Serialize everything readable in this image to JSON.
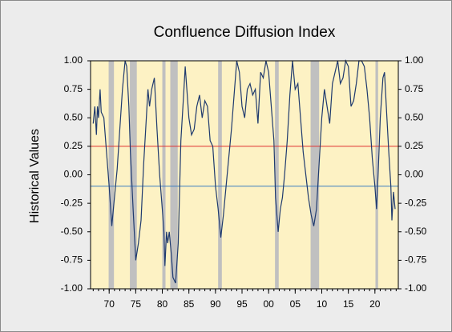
{
  "chart_data": {
    "type": "line",
    "title": "Confluence Diffusion Index",
    "y_label": "Historical Values",
    "xlim": [
      1966.5,
      2024.4
    ],
    "xticks": [
      {
        "value": 1970,
        "label": "70"
      },
      {
        "value": 1975,
        "label": "75"
      },
      {
        "value": 1980,
        "label": "80"
      },
      {
        "value": 1985,
        "label": "85"
      },
      {
        "value": 1990,
        "label": "90"
      },
      {
        "value": 1995,
        "label": "95"
      },
      {
        "value": 2000,
        "label": "00"
      },
      {
        "value": 2005,
        "label": "05"
      },
      {
        "value": 2010,
        "label": "10"
      },
      {
        "value": 2015,
        "label": "15"
      },
      {
        "value": 2020,
        "label": "20"
      }
    ],
    "ylim": [
      -1,
      1
    ],
    "yticks": [
      {
        "value": 1,
        "label": "1.00"
      },
      {
        "value": 0.75,
        "label": "0.75"
      },
      {
        "value": 0.5,
        "label": "0.50"
      },
      {
        "value": 0.25,
        "label": "0.25"
      },
      {
        "value": 0,
        "label": "0.00"
      },
      {
        "value": -0.25,
        "label": "-0.25"
      },
      {
        "value": -0.5,
        "label": "-0.50"
      },
      {
        "value": -0.75,
        "label": "-0.75"
      },
      {
        "value": -1,
        "label": "-1.00"
      }
    ],
    "y2lim": [
      -1,
      1
    ],
    "y2ticks": [
      {
        "value": 1,
        "label": "1.00"
      },
      {
        "value": 0.75,
        "label": "0.75"
      },
      {
        "value": 0.5,
        "label": "0.50"
      },
      {
        "value": 0.25,
        "label": "0.25"
      },
      {
        "value": 0,
        "label": "0.00"
      },
      {
        "value": -0.25,
        "label": "-0.25"
      },
      {
        "value": -0.5,
        "label": "-0.50"
      },
      {
        "value": -0.75,
        "label": "-0.75"
      },
      {
        "value": -1,
        "label": "-1.00"
      }
    ],
    "background": "#fdf2c4",
    "recession_color": "#c0c0c0",
    "recessions": [
      [
        1969.9,
        1970.9
      ],
      [
        1973.9,
        1975.2
      ],
      [
        1980.0,
        1980.6
      ],
      [
        1981.5,
        1982.9
      ],
      [
        1990.5,
        1991.2
      ],
      [
        2001.2,
        2001.9
      ],
      [
        2007.9,
        2009.5
      ],
      [
        2020.1,
        2020.6
      ]
    ],
    "reference_lines": [
      {
        "value": 0.25,
        "color": "#e03030"
      },
      {
        "value": -0.1,
        "color": "#3a7cc0"
      }
    ],
    "series": [
      {
        "color": "#1f3a6e",
        "x": [
          1967,
          1967.3,
          1967.6,
          1967.8,
          1968,
          1968.3,
          1968.5,
          1969,
          1969.5,
          1970,
          1970.5,
          1971,
          1971.5,
          1972,
          1972.5,
          1973,
          1973.3,
          1973.7,
          1974,
          1974.5,
          1975,
          1975.5,
          1976,
          1976.5,
          1977,
          1977.3,
          1977.6,
          1978,
          1978.5,
          1979,
          1979.5,
          1980,
          1980.3,
          1980.5,
          1980.8,
          1981,
          1981.3,
          1981.7,
          1982,
          1982.5,
          1983,
          1983.5,
          1984,
          1984.3,
          1985,
          1985.5,
          1986,
          1986.5,
          1987,
          1987.5,
          1988,
          1988.5,
          1989,
          1989.5,
          1990,
          1990.5,
          1991,
          1991.5,
          1992,
          1993,
          1993.5,
          1994,
          1994.5,
          1995,
          1995.5,
          1996,
          1996.5,
          1997,
          1997.5,
          1998,
          1998.5,
          1999,
          1999.5,
          2000,
          2000.5,
          2001,
          2001.3,
          2001.8,
          2002.2,
          2002.6,
          2003,
          2003.5,
          2004,
          2004.5,
          2005,
          2005.5,
          2006,
          2006.5,
          2007,
          2007.5,
          2008,
          2008.5,
          2009,
          2009.5,
          2010,
          2010.5,
          2011,
          2011.5,
          2012,
          2012.5,
          2013,
          2013.5,
          2014,
          2014.5,
          2015,
          2015.5,
          2016,
          2016.5,
          2017,
          2017.5,
          2018,
          2018.5,
          2019,
          2019.5,
          2020,
          2020.3,
          2020.6,
          2021,
          2021.5,
          2021.8,
          2022.2,
          2022.6,
          2023,
          2023.2,
          2023.5,
          2023.8
        ],
        "values": [
          0.45,
          0.6,
          0.35,
          0.6,
          0.5,
          0.75,
          0.55,
          0.5,
          0.2,
          -0.1,
          -0.45,
          -0.2,
          0.05,
          0.4,
          0.75,
          1.0,
          0.95,
          0.6,
          0.2,
          -0.3,
          -0.75,
          -0.6,
          -0.4,
          0.1,
          0.5,
          0.75,
          0.6,
          0.75,
          0.85,
          0.4,
          0.0,
          -0.3,
          -0.5,
          -0.8,
          -0.5,
          -0.6,
          -0.5,
          -0.7,
          -0.9,
          -0.95,
          -0.6,
          0.3,
          0.7,
          0.95,
          0.5,
          0.35,
          0.4,
          0.6,
          0.7,
          0.5,
          0.65,
          0.6,
          0.3,
          0.25,
          -0.1,
          -0.3,
          -0.55,
          -0.35,
          -0.1,
          0.4,
          0.7,
          1.0,
          0.9,
          0.6,
          0.5,
          0.75,
          0.8,
          0.7,
          0.75,
          0.45,
          0.9,
          0.85,
          1.0,
          0.9,
          0.6,
          0.3,
          -0.2,
          -0.5,
          -0.3,
          -0.2,
          0.0,
          0.3,
          0.7,
          1.0,
          0.75,
          0.8,
          0.5,
          0.2,
          0.0,
          -0.2,
          -0.35,
          -0.45,
          -0.3,
          0.1,
          0.5,
          0.75,
          0.6,
          0.45,
          0.8,
          0.9,
          1.0,
          0.8,
          0.85,
          1.0,
          0.95,
          0.6,
          0.65,
          0.8,
          1.0,
          1.0,
          0.95,
          0.75,
          0.5,
          0.15,
          -0.1,
          -0.3,
          0.0,
          0.5,
          0.85,
          0.9,
          0.55,
          0.2,
          -0.1,
          -0.4,
          -0.15,
          -0.3
        ]
      }
    ]
  }
}
